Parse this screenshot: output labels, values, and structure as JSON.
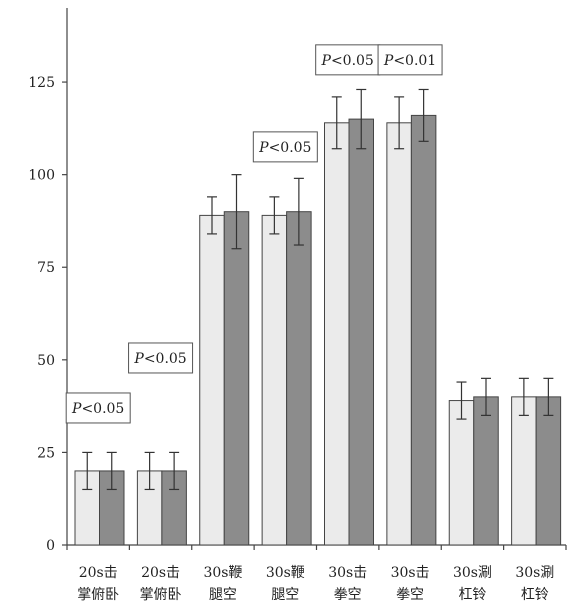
{
  "chart_data": {
    "type": "bar",
    "title": "",
    "xlabel": "",
    "ylabel": "",
    "ylim": [
      0,
      145
    ],
    "yticks": [
      0,
      25,
      50,
      75,
      100,
      125
    ],
    "grid": false,
    "legend": "none",
    "categories": [
      [
        "20s击",
        "掌俯卧"
      ],
      [
        "20s击",
        "掌俯卧"
      ],
      [
        "30s鞭",
        "腿空"
      ],
      [
        "30s鞭",
        "腿空"
      ],
      [
        "30s击",
        "拳空"
      ],
      [
        "30s击",
        "拳空"
      ],
      [
        "30s涮",
        "杠铃"
      ],
      [
        "30s涮",
        "杠铃"
      ]
    ],
    "series": [
      {
        "color": "#ebebeb",
        "values": [
          20,
          20,
          89,
          89,
          114,
          114,
          39,
          40
        ],
        "errors": [
          5,
          5,
          5,
          5,
          7,
          7,
          5,
          5
        ]
      },
      {
        "color": "#8c8c8c",
        "values": [
          20,
          20,
          90,
          90,
          115,
          116,
          40,
          40
        ],
        "errors": [
          5,
          5,
          10,
          9,
          8,
          7,
          5,
          5
        ]
      }
    ],
    "annotations": [
      {
        "text": "P<0.05",
        "group": 0,
        "y": 37
      },
      {
        "text": "P<0.05",
        "group": 1,
        "y": 50.5
      },
      {
        "text": "P<0.05",
        "group": 3,
        "y": 107.5
      },
      {
        "text": "P<0.05",
        "group": 4,
        "y": 131
      },
      {
        "text": "P<0.01",
        "group": 5,
        "y": 131
      }
    ]
  }
}
